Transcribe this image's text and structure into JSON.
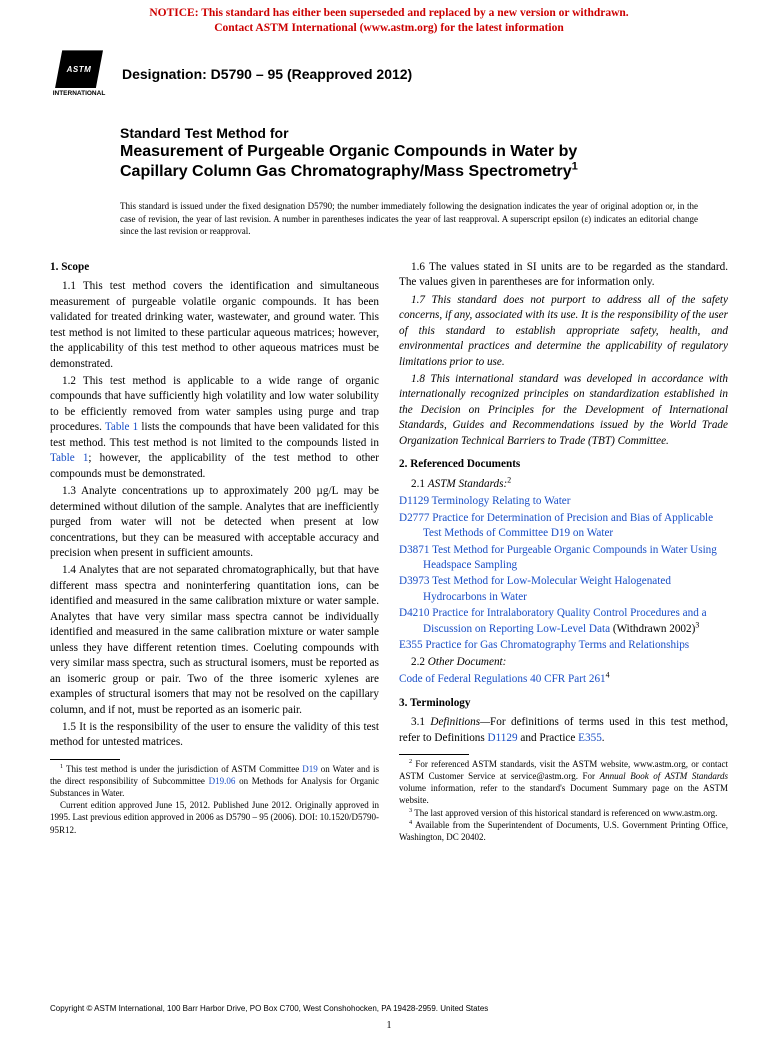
{
  "notice": {
    "line1": "NOTICE: This standard has either been superseded and replaced by a new version or withdrawn.",
    "line2": "Contact ASTM International (www.astm.org) for the latest information",
    "color": "#cc0000"
  },
  "logo": {
    "mark": "ASTM",
    "subtext": "INTERNATIONAL"
  },
  "designation": "Designation: D5790 – 95 (Reapproved 2012)",
  "heading": {
    "prefix": "Standard Test Method for",
    "title_a": "Measurement of Purgeable Organic Compounds in Water by",
    "title_b": "Capillary Column Gas Chromatography/Mass Spectrometry",
    "sup": "1"
  },
  "issuance": "This standard is issued under the fixed designation D5790; the number immediately following the designation indicates the year of original adoption or, in the case of revision, the year of last revision. A number in parentheses indicates the year of last reapproval. A superscript epsilon (ε) indicates an editorial change since the last revision or reapproval.",
  "col1": {
    "scope_title": "1. Scope",
    "p11": "1.1 This test method covers the identification and simultaneous measurement of purgeable volatile organic compounds. It has been validated for treated drinking water, wastewater, and ground water. This test method is not limited to these particular aqueous matrices; however, the applicability of this test method to other aqueous matrices must be demonstrated.",
    "p12a": "1.2 This test method is applicable to a wide range of organic compounds that have sufficiently high volatility and low water solubility to be efficiently removed from water samples using purge and trap procedures. ",
    "p12_link1": "Table 1",
    "p12b": " lists the compounds that have been validated for this test method. This test method is not limited to the compounds listed in ",
    "p12_link2": "Table 1",
    "p12c": "; however, the applicability of the test method to other compounds must be demonstrated.",
    "p13": "1.3 Analyte concentrations up to approximately 200 µg/L may be determined without dilution of the sample. Analytes that are inefficiently purged from water will not be detected when present at low concentrations, but they can be measured with acceptable accuracy and precision when present in sufficient amounts.",
    "p14": "1.4 Analytes that are not separated chromatographically, but that have different mass spectra and noninterfering quantitation ions, can be identified and measured in the same calibration mixture or water sample. Analytes that have very similar mass spectra cannot be individually identified and measured in the same calibration mixture or water sample unless they have different retention times. Coeluting compounds with very similar mass spectra, such as structural isomers, must be reported as an isomeric group or pair. Two of the three isomeric xylenes are examples of structural isomers that may not be resolved on the capillary column, and if not, must be reported as an isomeric pair.",
    "p15": "1.5 It is the responsibility of the user to ensure the validity of this test method for untested matrices.",
    "fn1a": " This test method is under the jurisdiction of ASTM Committee ",
    "fn1_link1": "D19",
    "fn1b": " on Water and is the direct responsibility of Subcommittee ",
    "fn1_link2": "D19.06",
    "fn1c": " on Methods for Analysis for Organic Substances in Water.",
    "fn1d": "Current edition approved June 15, 2012. Published June 2012. Originally approved in 1995. Last previous edition approved in 2006 as D5790 – 95 (2006). DOI: 10.1520/D5790-95R12."
  },
  "col2": {
    "p16": "1.6 The values stated in SI units are to be regarded as the standard. The values given in parentheses are for information only.",
    "p17": "1.7 This standard does not purport to address all of the safety concerns, if any, associated with its use. It is the responsibility of the user of this standard to establish appropriate safety, health, and environmental practices and determine the applicability of regulatory limitations prior to use.",
    "p18": "1.8 This international standard was developed in accordance with internationally recognized principles on standardization established in the Decision on Principles for the Development of International Standards, Guides and Recommendations issued by the World Trade Organization Technical Barriers to Trade (TBT) Committee.",
    "ref_title": "2. Referenced Documents",
    "r21_label": "2.1 ",
    "r21_ital": "ASTM Standards:",
    "r21_sup": "2",
    "refs": [
      {
        "code": "D1129",
        "text": " Terminology Relating to Water"
      },
      {
        "code": "D2777",
        "text": " Practice for Determination of Precision and Bias of Applicable Test Methods of Committee D19 on Water"
      },
      {
        "code": "D3871",
        "text": " Test Method for Purgeable Organic Compounds in Water Using Headspace Sampling"
      },
      {
        "code": "D3973",
        "text": " Test Method for Low-Molecular Weight Halogenated Hydrocarbons in Water"
      },
      {
        "code": "D4210",
        "text": " Practice for Intralaboratory Quality Control Procedures and a Discussion on Reporting Low-Level Data",
        "trail": " (Withdrawn 2002)",
        "sup": "3"
      },
      {
        "code": "E355",
        "text": " Practice for Gas Chromatography Terms and Relationships"
      }
    ],
    "r22_label": "2.2 ",
    "r22_ital": "Other Document:",
    "cfr_a": "Code of Federal Regulations",
    "cfr_b": " 40 CFR Part 261",
    "cfr_sup": "4",
    "term_title": "3. Terminology",
    "p31a": "3.1 ",
    "p31_ital": "Definitions—",
    "p31b": "For definitions of terms used in this test method, refer to Definitions ",
    "p31_link1": "D1129",
    "p31c": " and Practice ",
    "p31_link2": "E355",
    "p31d": ".",
    "fn2a": " For referenced ASTM standards, visit the ASTM website, www.astm.org, or contact ASTM Customer Service at service@astm.org. For ",
    "fn2_ital": "Annual Book of ASTM Standards",
    "fn2b": " volume information, refer to the standard's Document Summary page on the ASTM website.",
    "fn3": " The last approved version of this historical standard is referenced on www.astm.org.",
    "fn4": " Available from the Superintendent of Documents, U.S. Government Printing Office, Washington, DC 20402."
  },
  "copyright": "Copyright © ASTM International, 100 Barr Harbor Drive, PO Box C700, West Conshohocken, PA 19428-2959. United States",
  "pagenum": "1",
  "colors": {
    "link": "#1a4fc7",
    "notice": "#cc0000"
  }
}
